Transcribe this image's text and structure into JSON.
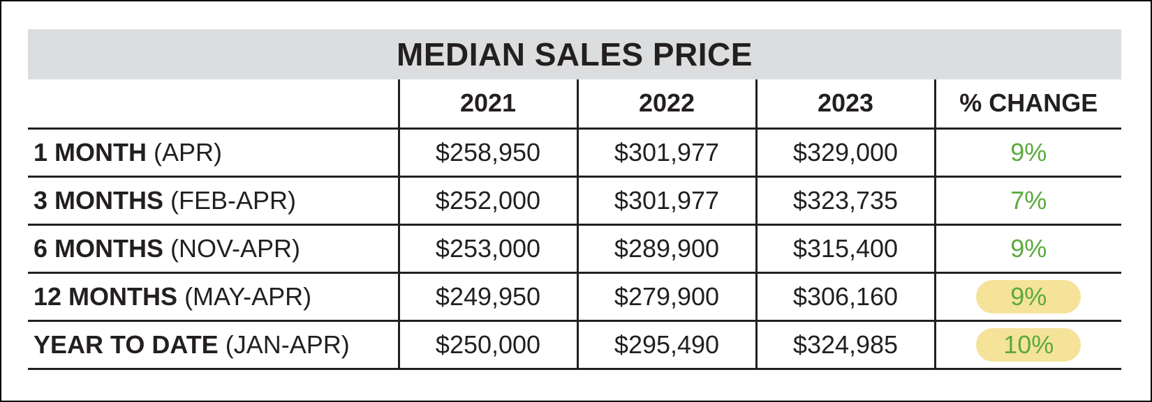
{
  "chart_data": {
    "type": "table",
    "title": "MEDIAN SALES PRICE",
    "columns": [
      "",
      "2021",
      "2022",
      "2023",
      "% CHANGE"
    ],
    "rows": [
      {
        "label": "1 MONTH",
        "period": "(APR)",
        "values": [
          "$258,950",
          "$301,977",
          "$329,000"
        ],
        "change": "9%",
        "highlight": false
      },
      {
        "label": "3 MONTHS",
        "period": "(FEB-APR)",
        "values": [
          "$252,000",
          "$301,977",
          "$323,735"
        ],
        "change": "7%",
        "highlight": false
      },
      {
        "label": "6 MONTHS",
        "period": "(NOV-APR)",
        "values": [
          "$253,000",
          "$289,900",
          "$315,400"
        ],
        "change": "9%",
        "highlight": false
      },
      {
        "label": "12 MONTHS",
        "period": "(MAY-APR)",
        "values": [
          "$249,950",
          "$279,900",
          "$306,160"
        ],
        "change": "9%",
        "highlight": true
      },
      {
        "label": "YEAR TO DATE",
        "period": "(JAN-APR)",
        "values": [
          "$250,000",
          "$295,490",
          "$324,985"
        ],
        "change": "10%",
        "highlight": true
      }
    ]
  },
  "colors": {
    "title_bar": "#dcddde",
    "text": "#231f20",
    "change_text": "#5aaa3c",
    "highlight": "#f6e39a"
  }
}
